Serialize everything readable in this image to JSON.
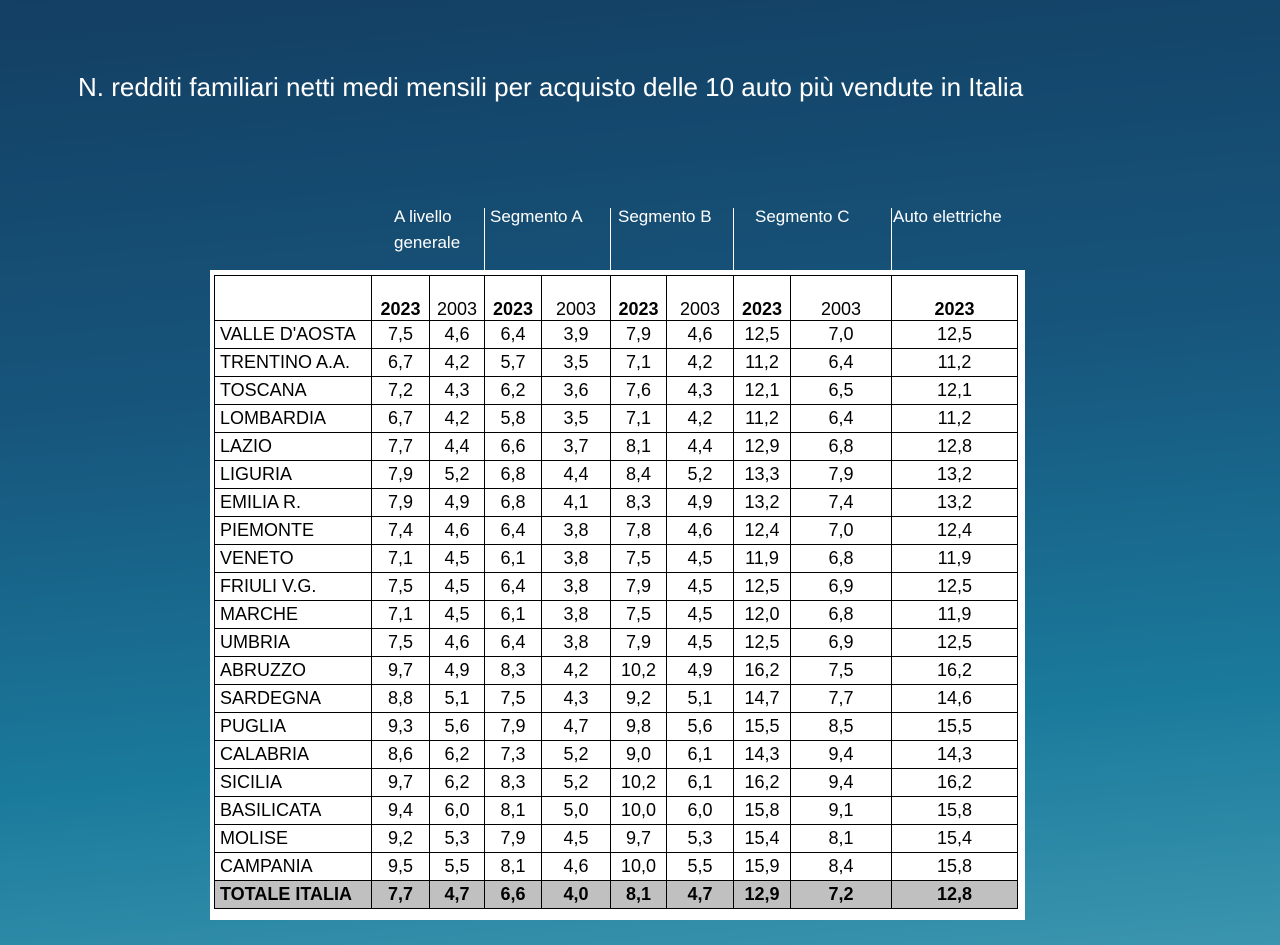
{
  "header": {
    "title": "N. redditi familiari netti medi mensili per acquisto delle 10 auto più vendute in Italia"
  },
  "table": {
    "groups": [
      "A livello generale",
      "Segmento A",
      "Segmento B",
      "Segmento C",
      "Auto elettriche"
    ],
    "years": [
      "2023",
      "2003",
      "2023",
      "2003",
      "2023",
      "2003",
      "2023",
      "2003",
      "2023"
    ],
    "rows": [
      [
        "VALLE D'AOSTA",
        "7,5",
        "4,6",
        "6,4",
        "3,9",
        "7,9",
        "4,6",
        "12,5",
        "7,0",
        "12,5"
      ],
      [
        "TRENTINO A.A.",
        "6,7",
        "4,2",
        "5,7",
        "3,5",
        "7,1",
        "4,2",
        "11,2",
        "6,4",
        "11,2"
      ],
      [
        "TOSCANA",
        "7,2",
        "4,3",
        "6,2",
        "3,6",
        "7,6",
        "4,3",
        "12,1",
        "6,5",
        "12,1"
      ],
      [
        "LOMBARDIA",
        "6,7",
        "4,2",
        "5,8",
        "3,5",
        "7,1",
        "4,2",
        "11,2",
        "6,4",
        "11,2"
      ],
      [
        "LAZIO",
        "7,7",
        "4,4",
        "6,6",
        "3,7",
        "8,1",
        "4,4",
        "12,9",
        "6,8",
        "12,8"
      ],
      [
        "LIGURIA",
        "7,9",
        "5,2",
        "6,8",
        "4,4",
        "8,4",
        "5,2",
        "13,3",
        "7,9",
        "13,2"
      ],
      [
        "EMILIA R.",
        "7,9",
        "4,9",
        "6,8",
        "4,1",
        "8,3",
        "4,9",
        "13,2",
        "7,4",
        "13,2"
      ],
      [
        "PIEMONTE",
        "7,4",
        "4,6",
        "6,4",
        "3,8",
        "7,8",
        "4,6",
        "12,4",
        "7,0",
        "12,4"
      ],
      [
        "VENETO",
        "7,1",
        "4,5",
        "6,1",
        "3,8",
        "7,5",
        "4,5",
        "11,9",
        "6,8",
        "11,9"
      ],
      [
        "FRIULI V.G.",
        "7,5",
        "4,5",
        "6,4",
        "3,8",
        "7,9",
        "4,5",
        "12,5",
        "6,9",
        "12,5"
      ],
      [
        "MARCHE",
        "7,1",
        "4,5",
        "6,1",
        "3,8",
        "7,5",
        "4,5",
        "12,0",
        "6,8",
        "11,9"
      ],
      [
        "UMBRIA",
        "7,5",
        "4,6",
        "6,4",
        "3,8",
        "7,9",
        "4,5",
        "12,5",
        "6,9",
        "12,5"
      ],
      [
        "ABRUZZO",
        "9,7",
        "4,9",
        "8,3",
        "4,2",
        "10,2",
        "4,9",
        "16,2",
        "7,5",
        "16,2"
      ],
      [
        "SARDEGNA",
        "8,8",
        "5,1",
        "7,5",
        "4,3",
        "9,2",
        "5,1",
        "14,7",
        "7,7",
        "14,6"
      ],
      [
        "PUGLIA",
        "9,3",
        "5,6",
        "7,9",
        "4,7",
        "9,8",
        "5,6",
        "15,5",
        "8,5",
        "15,5"
      ],
      [
        "CALABRIA",
        "8,6",
        "6,2",
        "7,3",
        "5,2",
        "9,0",
        "6,1",
        "14,3",
        "9,4",
        "14,3"
      ],
      [
        "SICILIA",
        "9,7",
        "6,2",
        "8,3",
        "5,2",
        "10,2",
        "6,1",
        "16,2",
        "9,4",
        "16,2"
      ],
      [
        "BASILICATA",
        "9,4",
        "6,0",
        "8,1",
        "5,0",
        "10,0",
        "6,0",
        "15,8",
        "9,1",
        "15,8"
      ],
      [
        "MOLISE",
        "9,2",
        "5,3",
        "7,9",
        "4,5",
        "9,7",
        "5,3",
        "15,4",
        "8,1",
        "15,4"
      ],
      [
        "CAMPANIA",
        "9,5",
        "5,5",
        "8,1",
        "4,6",
        "10,0",
        "5,5",
        "15,9",
        "8,4",
        "15,8"
      ]
    ],
    "total": [
      "TOTALE ITALIA",
      "7,7",
      "4,7",
      "6,6",
      "4,0",
      "8,1",
      "4,7",
      "12,9",
      "7,2",
      "12,8"
    ]
  }
}
